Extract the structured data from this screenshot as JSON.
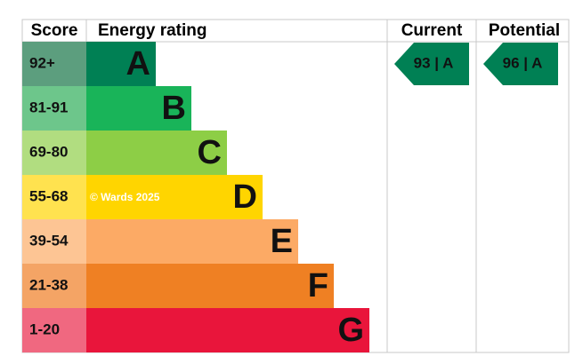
{
  "header": {
    "score": "Score",
    "rating": "Energy rating",
    "current": "Current",
    "potential": "Potential"
  },
  "bands": [
    {
      "score": "92+",
      "letter": "A",
      "color": "#008054",
      "light": "#5c9e7e"
    },
    {
      "score": "81-91",
      "letter": "B",
      "color": "#19b459",
      "light": "#6dc68b"
    },
    {
      "score": "69-80",
      "letter": "C",
      "color": "#8dce46",
      "light": "#b1dd80"
    },
    {
      "score": "55-68",
      "letter": "D",
      "color": "#ffd500",
      "light": "#ffe24f"
    },
    {
      "score": "39-54",
      "letter": "E",
      "color": "#fcaa65",
      "light": "#fdc594"
    },
    {
      "score": "21-38",
      "letter": "F",
      "color": "#ef8023",
      "light": "#f4a465"
    },
    {
      "score": "1-20",
      "letter": "G",
      "color": "#e9153b",
      "light": "#f06880"
    }
  ],
  "current": {
    "label": "93 | A",
    "color": "#008054"
  },
  "potential": {
    "label": "96 | A",
    "color": "#008054"
  },
  "watermark": "© Wards 2025"
}
